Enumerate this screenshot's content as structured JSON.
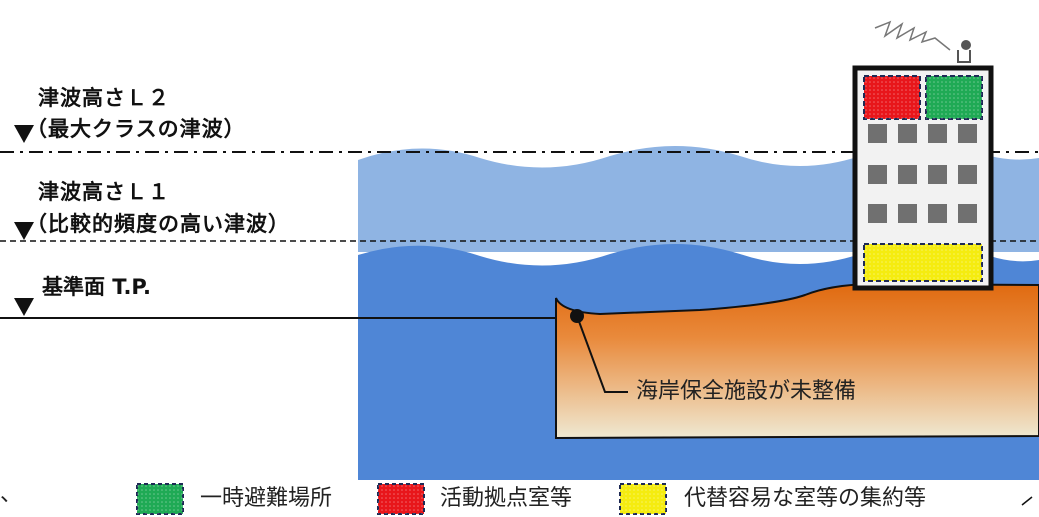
{
  "labels": {
    "l2_title": "津波高さＬ２",
    "l2_sub": "（最大クラスの津波）",
    "l1_title": "津波高さＬ１",
    "l1_sub": "（比較的頻度の高い津波）",
    "base": "基準面 T.P.",
    "callout": "海岸保全施設が未整備"
  },
  "legend": {
    "items": [
      {
        "label": "一時避難場所",
        "color": "#1faa55"
      },
      {
        "label": "活動拠点室等",
        "color": "#e8161b"
      },
      {
        "label": "代替容易な室等の集約等",
        "color": "#f5ec10"
      }
    ],
    "edge_left": "、"
  },
  "colors": {
    "water_light": "#8fb4e3",
    "water_dark": "#4f86d6",
    "land": "#e57817",
    "land_bottom": "#efe7cc"
  }
}
